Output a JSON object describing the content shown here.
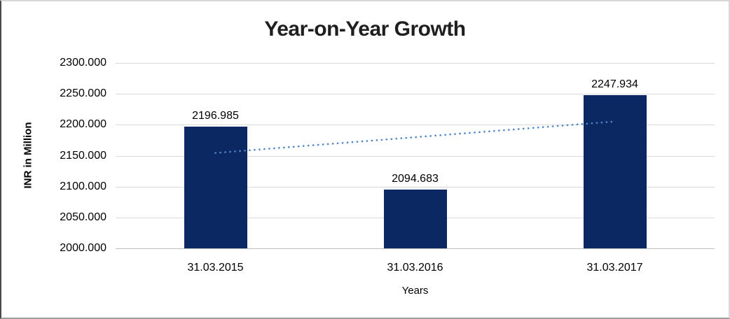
{
  "window": {
    "background": "#ffffff",
    "frame_border_color": "#d7d7d7",
    "frame_border_left_color": "#4a4a4a"
  },
  "chart_data": {
    "type": "bar",
    "title": "Year-on-Year Growth",
    "categories": [
      "31.03.2015",
      "31.03.2016",
      "31.03.2017"
    ],
    "values": [
      2196.985,
      2094.683,
      2247.934
    ],
    "data_labels": [
      "2196.985",
      "2094.683",
      "2247.934"
    ],
    "xlabel": "Years",
    "ylabel": "INR in Million",
    "ylim": [
      2000,
      2300
    ],
    "ytick_interval": 50,
    "ytick_labels": [
      "2300.000",
      "2250.000",
      "2200.000",
      "2150.000",
      "2100.000",
      "2050.000",
      "2000.000"
    ],
    "grid": true,
    "legend": "none",
    "bar_color": "#0c2863",
    "gridline_color": "#d9d9d9",
    "axisline_color": "#bfbfbf",
    "trendline": {
      "type": "linear",
      "style": "dotted",
      "color": "#4f86c6",
      "start_value": 2154.4,
      "end_value": 2205.3
    }
  }
}
